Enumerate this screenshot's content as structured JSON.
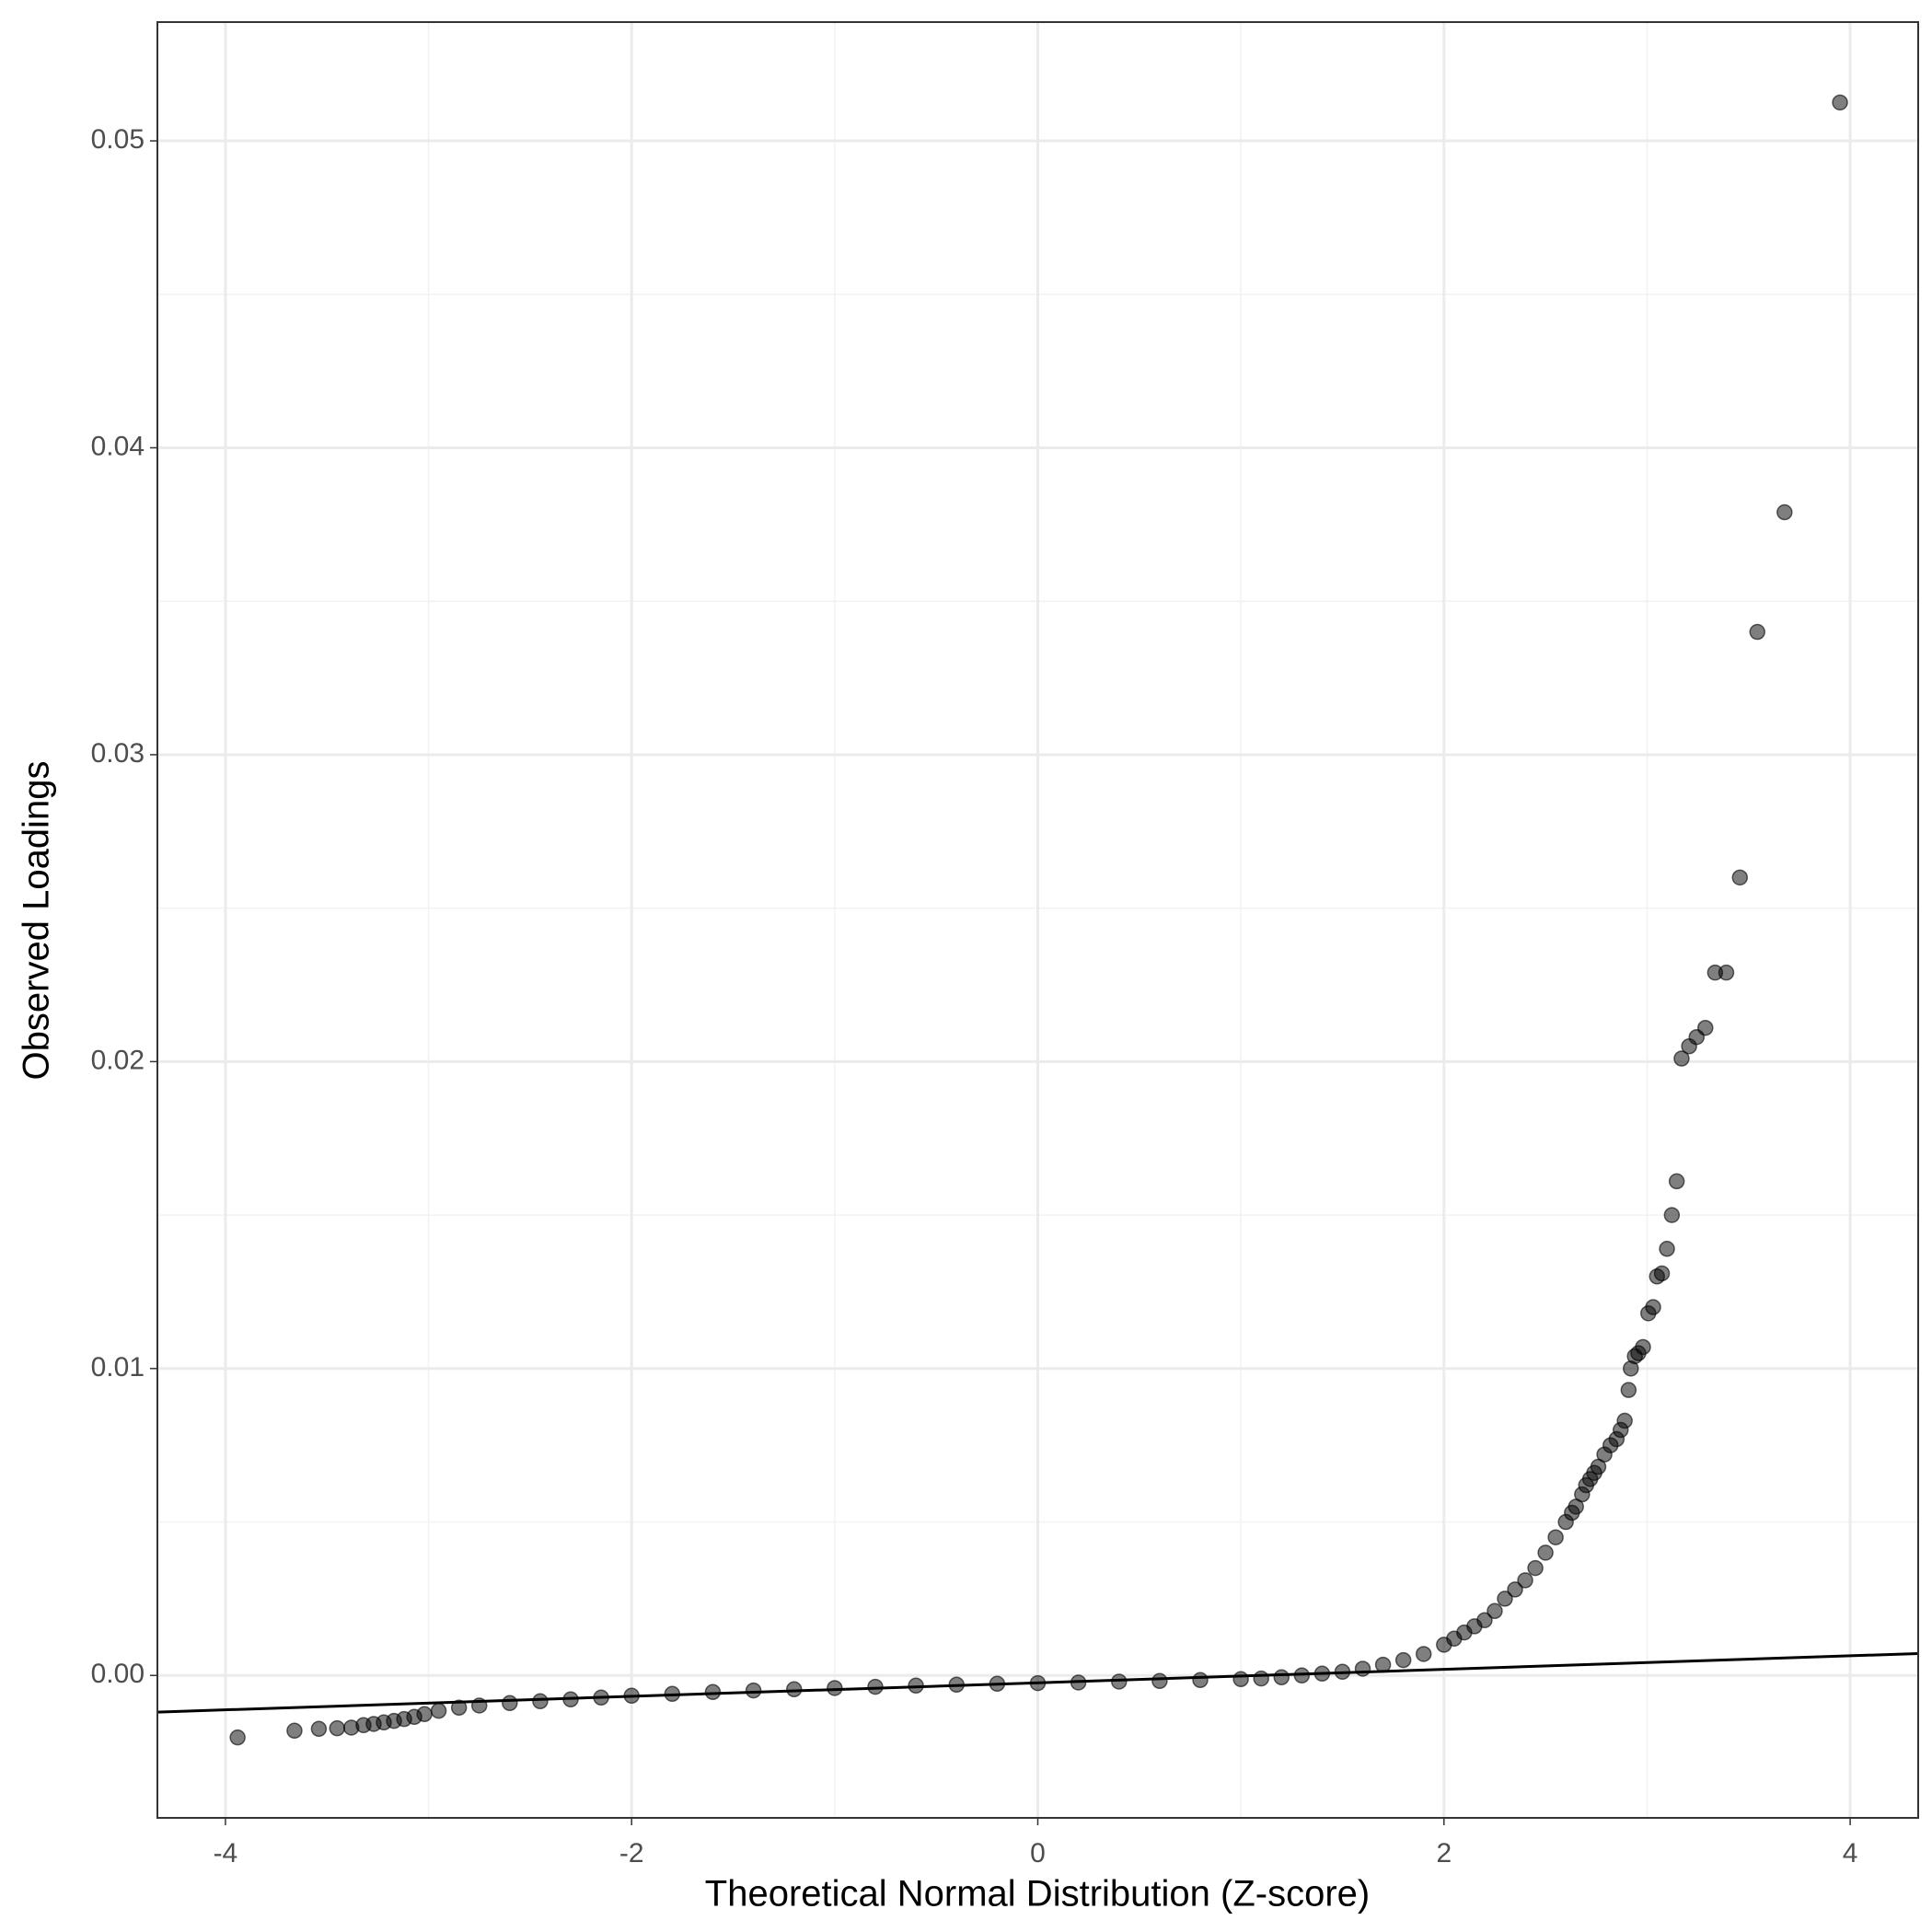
{
  "chart_data": {
    "type": "scatter",
    "x_label": "Theoretical Normal Distribution (Z-score)",
    "y_label": "Observed Loadings",
    "x": [
      -3.94,
      -3.66,
      -3.54,
      -3.45,
      -3.38,
      -3.32,
      -3.27,
      -3.22,
      -3.17,
      -3.12,
      -3.07,
      -3.02,
      -2.95,
      -2.85,
      -2.75,
      -2.6,
      -2.45,
      -2.3,
      -2.15,
      -2.0,
      -1.8,
      -1.6,
      -1.4,
      -1.2,
      -1.0,
      -0.8,
      -0.6,
      -0.4,
      -0.2,
      0.0,
      0.2,
      0.4,
      0.6,
      0.8,
      1.0,
      1.1,
      1.2,
      1.3,
      1.4,
      1.5,
      1.6,
      1.7,
      1.8,
      1.9,
      2.0,
      2.05,
      2.1,
      2.15,
      2.2,
      2.25,
      2.3,
      2.35,
      2.4,
      2.45,
      2.5,
      2.55,
      2.6,
      2.63,
      2.65,
      2.68,
      2.7,
      2.72,
      2.74,
      2.76,
      2.79,
      2.82,
      2.85,
      2.87,
      2.89,
      2.909,
      2.92,
      2.94,
      2.957,
      2.98,
      3.006,
      3.03,
      3.049,
      3.073,
      3.098,
      3.122,
      3.146,
      3.17,
      3.207,
      3.244,
      3.287,
      3.335,
      3.39,
      3.457,
      3.543,
      3.677,
      3.95
    ],
    "values": [
      -0.00202,
      -0.0018,
      -0.00174,
      -0.00172,
      -0.0017,
      -0.00162,
      -0.00158,
      -0.00153,
      -0.00148,
      -0.00142,
      -0.00135,
      -0.00126,
      -0.00115,
      -0.00105,
      -0.00098,
      -0.0009,
      -0.00084,
      -0.00078,
      -0.00072,
      -0.00066,
      -0.0006,
      -0.00054,
      -0.00049,
      -0.00045,
      -0.00041,
      -0.00037,
      -0.00033,
      -0.0003,
      -0.00027,
      -0.00025,
      -0.00023,
      -0.0002,
      -0.00018,
      -0.00015,
      -0.00012,
      -0.0001,
      -6e-05,
      0.0,
      6e-05,
      0.00012,
      0.00022,
      0.00035,
      0.0005,
      0.0007,
      0.001,
      0.0012,
      0.0014,
      0.0016,
      0.0018,
      0.0021,
      0.0025,
      0.0028,
      0.0031,
      0.0035,
      0.004,
      0.0045,
      0.005,
      0.0053,
      0.0055,
      0.0059,
      0.0062,
      0.0064,
      0.0066,
      0.0068,
      0.0072,
      0.0075,
      0.0077,
      0.008,
      0.0083,
      0.0093,
      0.01,
      0.0104,
      0.0105,
      0.0107,
      0.0118,
      0.012,
      0.013,
      0.0131,
      0.0139,
      0.015,
      0.0161,
      0.0201,
      0.0205,
      0.0208,
      0.0211,
      0.0229,
      0.0229,
      0.026,
      0.034,
      0.0379,
      0.05125
    ],
    "color": "#000000",
    "reference_line": {
      "intercept": -0.00024,
      "slope": 0.00022
    },
    "xlim": [
      -4.335,
      4.335
    ],
    "xticks": [
      -4,
      -2,
      0,
      2,
      4
    ],
    "x_minor_ticks": [
      -3,
      -1,
      1,
      3
    ],
    "ylim": [
      -0.00464,
      0.05387
    ],
    "yticks": [
      {
        "value": 0,
        "label": "0.00"
      },
      0.01,
      0.02,
      0.03,
      0.04,
      0.05
    ],
    "y_minor_ticks": [
      0.005,
      0.015,
      0.025,
      0.035,
      0.045
    ],
    "grid": true
  }
}
